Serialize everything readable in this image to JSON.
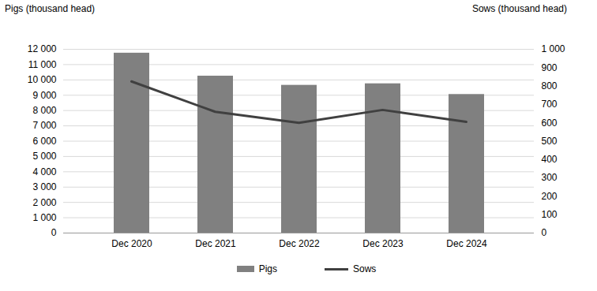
{
  "chart_data": {
    "type": "bar",
    "categories": [
      "Dec 2020",
      "Dec 2021",
      "Dec 2022",
      "Dec 2023",
      "Dec 2024"
    ],
    "series": [
      {
        "name": "Pigs",
        "type": "bar",
        "color": "#808080",
        "values": [
          11750,
          10250,
          9650,
          9750,
          9050
        ]
      },
      {
        "name": "Sows",
        "type": "line",
        "color": "#404040",
        "axis": "y2",
        "values": [
          825,
          660,
          600,
          670,
          605
        ]
      }
    ],
    "ylabel": "Pigs (thousand head)",
    "y2label": "Sows (thousand head)",
    "ylim": [
      0,
      12000
    ],
    "yticks": [
      0,
      {
        "value": 1000,
        "label": "1 000"
      },
      {
        "value": 2000,
        "label": "2 000"
      },
      {
        "value": 3000,
        "label": "3 000"
      },
      {
        "value": 4000,
        "label": "4 000"
      },
      {
        "value": 5000,
        "label": "5 000"
      },
      {
        "value": 6000,
        "label": "6 000"
      },
      {
        "value": 7000,
        "label": "7 000"
      },
      {
        "value": 8000,
        "label": "8 000"
      },
      {
        "value": 9000,
        "label": "9 000"
      },
      {
        "value": 10000,
        "label": "10 000"
      },
      {
        "value": 11000,
        "label": "11 000"
      },
      {
        "value": 12000,
        "label": "12 000"
      }
    ],
    "y2lim": [
      0,
      1000
    ],
    "y2ticks": [
      0,
      100,
      200,
      300,
      400,
      500,
      600,
      700,
      800,
      900,
      {
        "value": 1000,
        "label": "1 000"
      }
    ],
    "grid": true,
    "legend": "bottom"
  }
}
